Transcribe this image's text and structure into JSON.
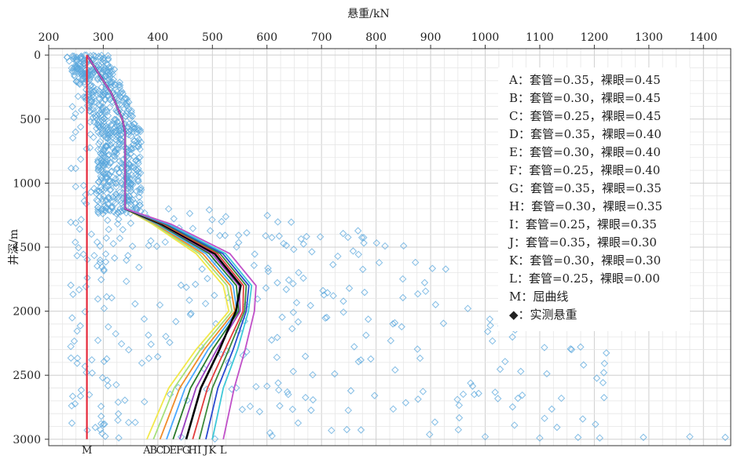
{
  "chart_data": {
    "type": "line",
    "title": "",
    "xlabel": "悬重/kN",
    "ylabel": "井深/m",
    "xlim": [
      200,
      1450
    ],
    "ylim": [
      3050,
      -50
    ],
    "x_axis_position": "top",
    "x_ticks": [
      200,
      300,
      400,
      500,
      600,
      700,
      800,
      900,
      1000,
      1100,
      1200,
      1300,
      1400
    ],
    "y_ticks": [
      0,
      500,
      1000,
      1500,
      2000,
      2500,
      3000
    ],
    "grid": true,
    "legend_position": "top-right",
    "legend": [
      "A：套管=0.35，裸眼=0.45",
      "B：套管=0.30，裸眼=0.45",
      "C：套管=0.25，裸眼=0.45",
      "D：套管=0.35，裸眼=0.40",
      "E：套管=0.30，裸眼=0.40",
      "F：套管=0.25，裸眼=0.40",
      "G：套管=0.35，裸眼=0.35",
      "H：套管=0.30，裸眼=0.35",
      "I：套管=0.25，裸眼=0.35",
      "J：套管=0.35，裸眼=0.30",
      "K：套管=0.30，裸眼=0.30",
      "L：套管=0.25，裸眼=0.00",
      "M：屈曲线",
      "◆：实测悬重"
    ],
    "common_upper_curve": {
      "depth": [
        0,
        100,
        300,
        500,
        600,
        800,
        1000,
        1200
      ],
      "load": [
        270,
        285,
        315,
        335,
        340,
        340,
        340,
        340
      ]
    },
    "series": [
      {
        "label": "A",
        "color": "#f2e84a",
        "x": [
          340,
          390,
          470,
          520,
          530,
          470,
          420,
          380
        ],
        "y": [
          1200,
          1320,
          1550,
          1800,
          2000,
          2300,
          2600,
          3000
        ]
      },
      {
        "label": "B",
        "color": "#a6e07a",
        "x": [
          340,
          393,
          476,
          527,
          536,
          478,
          430,
          392
        ],
        "y": [
          1200,
          1320,
          1550,
          1800,
          2000,
          2300,
          2600,
          3000
        ]
      },
      {
        "label": "C",
        "color": "#f08c2a",
        "x": [
          340,
          396,
          482,
          533,
          541,
          485,
          440,
          404
        ],
        "y": [
          1200,
          1320,
          1550,
          1800,
          2000,
          2300,
          2600,
          3000
        ]
      },
      {
        "label": "D",
        "color": "#4aa8ff",
        "x": [
          340,
          399,
          488,
          538,
          545,
          492,
          450,
          416
        ],
        "y": [
          1200,
          1320,
          1550,
          1800,
          2000,
          2300,
          2600,
          3000
        ]
      },
      {
        "label": "E",
        "color": "#2a7a2a",
        "x": [
          340,
          402,
          494,
          544,
          548,
          500,
          460,
          428
        ],
        "y": [
          1200,
          1320,
          1550,
          1800,
          2000,
          2300,
          2600,
          3000
        ]
      },
      {
        "label": "F",
        "color": "#9a3ec0",
        "x": [
          340,
          405,
          499,
          549,
          551,
          508,
          470,
          440
        ],
        "y": [
          1200,
          1320,
          1550,
          1800,
          2000,
          2300,
          2600,
          3000
        ]
      },
      {
        "label": "G",
        "color": "#000000",
        "x": [
          340,
          407,
          504,
          552,
          543,
          513,
          479,
          452
        ],
        "y": [
          1200,
          1320,
          1550,
          1800,
          2000,
          2300,
          2600,
          3000
        ]
      },
      {
        "label": "H",
        "color": "#e23b3b",
        "x": [
          340,
          410,
          509,
          557,
          556,
          523,
          491,
          464
        ],
        "y": [
          1200,
          1320,
          1550,
          1800,
          2000,
          2300,
          2600,
          3000
        ]
      },
      {
        "label": "I",
        "color": "#3d8a3d",
        "x": [
          340,
          413,
          514,
          562,
          559,
          530,
          500,
          476
        ],
        "y": [
          1200,
          1320,
          1550,
          1800,
          2000,
          2300,
          2600,
          3000
        ]
      },
      {
        "label": "J",
        "color": "#2a4ad0",
        "x": [
          340,
          416,
          519,
          567,
          562,
          538,
          510,
          488
        ],
        "y": [
          1200,
          1320,
          1550,
          1800,
          2000,
          2300,
          2600,
          3000
        ]
      },
      {
        "label": "K",
        "color": "#3ec8d8",
        "x": [
          340,
          419,
          524,
          572,
          566,
          546,
          520,
          500
        ],
        "y": [
          1200,
          1320,
          1550,
          1800,
          2000,
          2300,
          2600,
          3000
        ]
      },
      {
        "label": "L",
        "color": "#c050c8",
        "x": [
          340,
          424,
          532,
          580,
          577,
          560,
          540,
          520
        ],
        "y": [
          1200,
          1320,
          1550,
          1800,
          2000,
          2300,
          2600,
          3000
        ]
      },
      {
        "label": "M",
        "color": "#e6283a",
        "x": [
          270,
          270
        ],
        "y": [
          0,
          3000
        ]
      }
    ],
    "measured_points_color": "#5aa7dc"
  }
}
